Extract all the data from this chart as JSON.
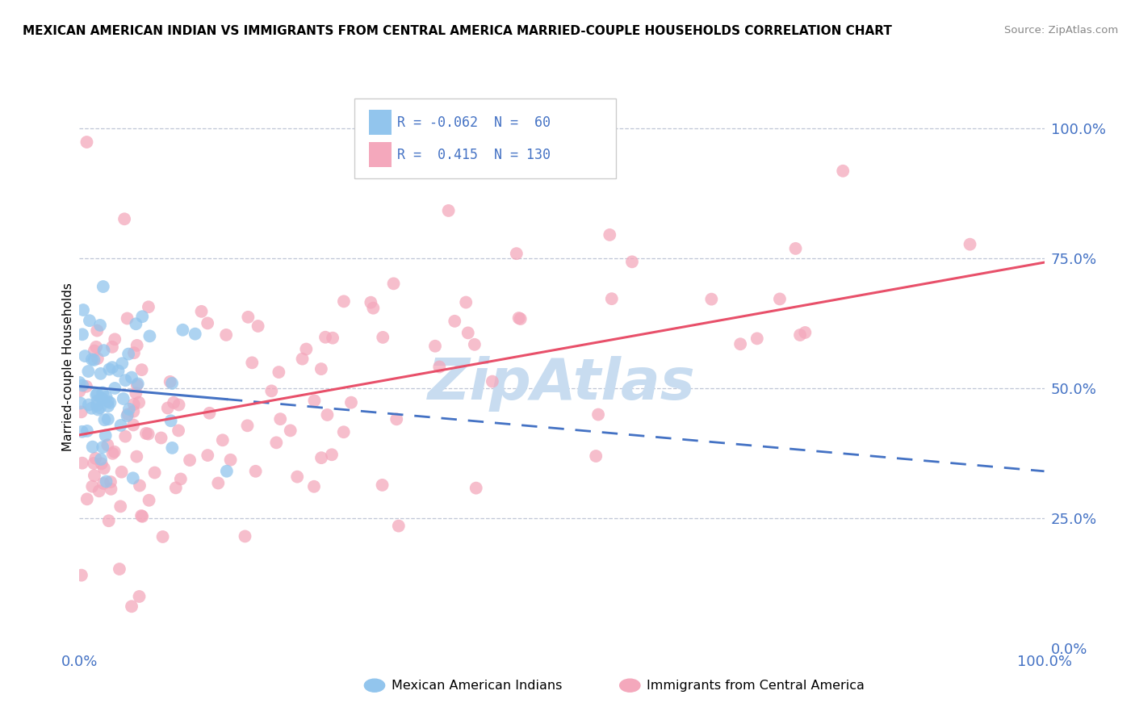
{
  "title": "MEXICAN AMERICAN INDIAN VS IMMIGRANTS FROM CENTRAL AMERICA MARRIED-COUPLE HOUSEHOLDS CORRELATION CHART",
  "source": "Source: ZipAtlas.com",
  "ylabel": "Married-couple Households",
  "blue_R": -0.062,
  "blue_N": 60,
  "pink_R": 0.415,
  "pink_N": 130,
  "blue_color": "#92C5ED",
  "pink_color": "#F4A8BC",
  "blue_line_color": "#4472C4",
  "pink_line_color": "#E8506A",
  "legend_label_blue": "Mexican American Indians",
  "legend_label_pink": "Immigrants from Central America",
  "watermark_color": "#C8DCF0",
  "grid_color": "#B0B8CC",
  "ytick_color": "#4472C4",
  "xtick_color": "#4472C4"
}
